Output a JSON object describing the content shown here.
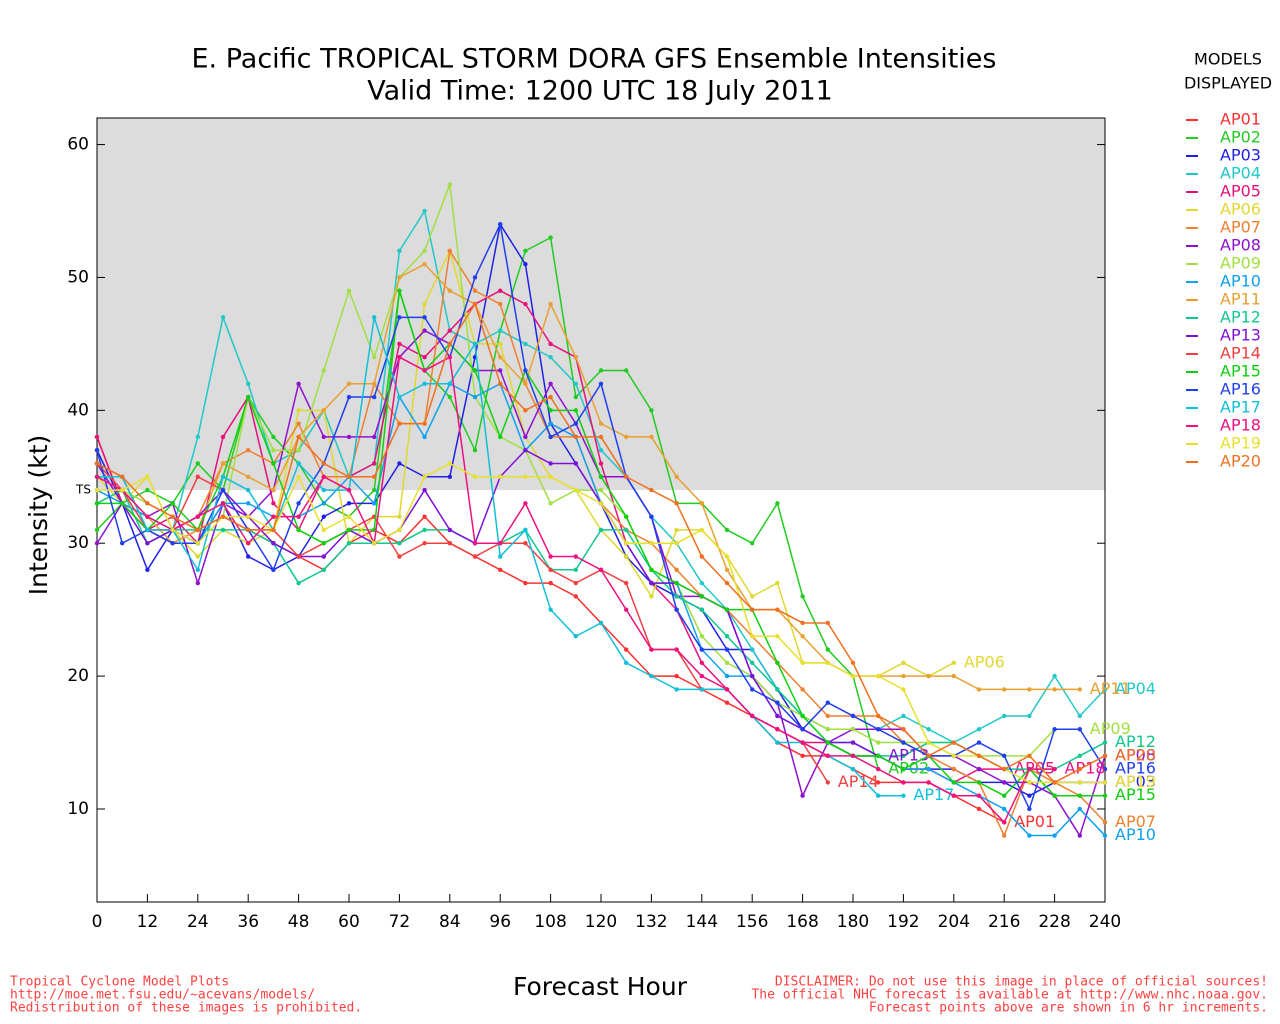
{
  "chart_data": {
    "type": "line",
    "title": "E. Pacific TROPICAL STORM DORA GFS Ensemble Intensities",
    "subtitle": "Valid Time: 1200 UTC 18 July 2011",
    "x_label": "Forecast Hour",
    "y_label": "Intensity (kt)",
    "legend_title": [
      "MODELS",
      "DISPLAYED"
    ],
    "footer_left": [
      "Tropical Cyclone Model Plots",
      "http://moe.met.fsu.edu/~acevans/models/",
      "Redistribution of these images is prohibited."
    ],
    "footer_right": [
      "DISCLAIMER: Do not use this image in place of official sources!",
      "The official NHC forecast is available at http://www.nhc.noaa.gov.",
      "Forecast points above are shown in 6 hr increments."
    ],
    "threshold": {
      "text": "TS",
      "value": 34
    },
    "xlim": [
      0,
      240
    ],
    "ylim": [
      3,
      62
    ],
    "xticks": [
      0,
      12,
      24,
      36,
      48,
      60,
      72,
      84,
      96,
      108,
      120,
      132,
      144,
      156,
      168,
      180,
      192,
      204,
      216,
      228,
      240
    ],
    "yticks": [
      10,
      20,
      30,
      40,
      50,
      60
    ],
    "legend": "right",
    "x": [
      0,
      6,
      12,
      18,
      24,
      30,
      36,
      42,
      48,
      54,
      60,
      66,
      72,
      78,
      84,
      90,
      96,
      102,
      108,
      114,
      120,
      126,
      132,
      138,
      144,
      150,
      156,
      162,
      168,
      174,
      180,
      186,
      192,
      198,
      204,
      210,
      216,
      222,
      228,
      234,
      240
    ],
    "series": [
      {
        "name": "AP01",
        "color": "#ff3030",
        "values": [
          38,
          33,
          31,
          30,
          31,
          32,
          31,
          30,
          29,
          28,
          30,
          31,
          30,
          32,
          30,
          29,
          28,
          27,
          27,
          26,
          24,
          22,
          20,
          20,
          19,
          18,
          17,
          15,
          14,
          14,
          13,
          12,
          12,
          12,
          11,
          10,
          9,
          null,
          null,
          null,
          null
        ]
      },
      {
        "name": "AP02",
        "color": "#20cc20",
        "values": [
          31,
          33,
          34,
          33,
          36,
          34,
          41,
          38,
          36,
          33,
          32,
          34,
          49,
          43,
          41,
          37,
          46,
          52,
          53,
          41,
          43,
          43,
          40,
          33,
          33,
          31,
          30,
          33,
          26,
          22,
          20,
          13,
          null,
          null,
          null,
          null,
          null,
          null,
          null,
          null,
          null
        ]
      },
      {
        "name": "AP03",
        "color": "#2020e8",
        "values": [
          37,
          33,
          28,
          31,
          30,
          33,
          29,
          28,
          29,
          32,
          33,
          33,
          36,
          35,
          35,
          44,
          54,
          51,
          39,
          36,
          33,
          29,
          27,
          26,
          25,
          22,
          22,
          19,
          16,
          15,
          14,
          14,
          13,
          13,
          13,
          12,
          12,
          11,
          12,
          12,
          12
        ]
      },
      {
        "name": "AP04",
        "color": "#20c8c8",
        "values": [
          35,
          35,
          31,
          31,
          38,
          47,
          42,
          36,
          37,
          40,
          35,
          36,
          52,
          55,
          46,
          45,
          46,
          45,
          44,
          42,
          37,
          35,
          32,
          30,
          27,
          25,
          22,
          19,
          17,
          16,
          16,
          16,
          17,
          16,
          15,
          16,
          17,
          17,
          20,
          17,
          19
        ]
      },
      {
        "name": "AP05",
        "color": "#e8107a",
        "values": [
          38,
          33,
          31,
          32,
          30,
          38,
          41,
          33,
          31,
          35,
          35,
          36,
          45,
          44,
          46,
          48,
          49,
          48,
          45,
          44,
          36,
          30,
          27,
          25,
          21,
          19,
          17,
          16,
          15,
          15,
          14,
          14,
          13,
          13,
          12,
          13,
          13,
          null,
          null,
          null,
          null
        ]
      },
      {
        "name": "AP06",
        "color": "#e0d830",
        "values": [
          35,
          33,
          35,
          31,
          29,
          31,
          30,
          31,
          40,
          40,
          30,
          32,
          32,
          48,
          52,
          45,
          45,
          38,
          35,
          34,
          31,
          29,
          26,
          31,
          31,
          29,
          26,
          27,
          21,
          21,
          20,
          20,
          21,
          20,
          21,
          null,
          null,
          null,
          null,
          null,
          null
        ]
      },
      {
        "name": "AP07",
        "color": "#f08030",
        "values": [
          36,
          35,
          31,
          31,
          32,
          36,
          37,
          36,
          39,
          35,
          35,
          42,
          39,
          39,
          52,
          49,
          48,
          42,
          38,
          38,
          33,
          31,
          30,
          28,
          26,
          25,
          23,
          21,
          19,
          17,
          17,
          17,
          15,
          14,
          13,
          12,
          8,
          13,
          12,
          11,
          9
        ]
      },
      {
        "name": "AP08",
        "color": "#9010d0",
        "values": [
          30,
          33,
          32,
          33,
          27,
          33,
          32,
          34,
          42,
          38,
          38,
          38,
          44,
          46,
          45,
          43,
          43,
          38,
          42,
          39,
          35,
          35,
          32,
          26,
          26,
          25,
          20,
          18,
          11,
          15,
          16,
          16,
          16,
          14,
          14,
          13,
          12,
          12,
          11,
          8,
          14
        ]
      },
      {
        "name": "AP09",
        "color": "#a0e040",
        "values": [
          33,
          34,
          33,
          32,
          31,
          32,
          41,
          37,
          37,
          43,
          49,
          44,
          50,
          52,
          57,
          41,
          38,
          37,
          33,
          34,
          34,
          32,
          28,
          27,
          23,
          21,
          20,
          18,
          17,
          16,
          16,
          15,
          15,
          15,
          15,
          14,
          14,
          14,
          16,
          16,
          null
        ]
      },
      {
        "name": "AP10",
        "color": "#10a0f0",
        "values": [
          34,
          33,
          32,
          31,
          30,
          33,
          33,
          32,
          32,
          33,
          35,
          33,
          41,
          38,
          42,
          41,
          42,
          37,
          39,
          38,
          33,
          30,
          27,
          27,
          22,
          20,
          20,
          17,
          16,
          15,
          15,
          14,
          13,
          13,
          12,
          11,
          10,
          8,
          8,
          10,
          8
        ]
      },
      {
        "name": "AP11",
        "color": "#e8a030",
        "values": [
          35,
          34,
          32,
          30,
          31,
          36,
          35,
          34,
          38,
          40,
          42,
          42,
          50,
          51,
          49,
          48,
          44,
          42,
          48,
          44,
          39,
          38,
          38,
          35,
          33,
          28,
          25,
          25,
          23,
          21,
          20,
          20,
          20,
          20,
          20,
          19,
          19,
          19,
          19,
          19,
          null
        ]
      },
      {
        "name": "AP12",
        "color": "#10c890",
        "values": [
          33,
          34,
          30,
          31,
          31,
          31,
          31,
          30,
          27,
          28,
          30,
          30,
          30,
          31,
          31,
          30,
          30,
          31,
          28,
          28,
          31,
          31,
          28,
          26,
          25,
          23,
          21,
          19,
          17,
          15,
          14,
          14,
          14,
          15,
          15,
          14,
          13,
          13,
          13,
          14,
          15
        ]
      },
      {
        "name": "AP13",
        "color": "#8010d8",
        "values": [
          36,
          33,
          30,
          31,
          32,
          34,
          32,
          30,
          29,
          29,
          31,
          30,
          31,
          34,
          31,
          30,
          35,
          37,
          36,
          36,
          33,
          30,
          27,
          27,
          26,
          25,
          20,
          17,
          16,
          15,
          15,
          14,
          null,
          null,
          null,
          null,
          null,
          null,
          null,
          null,
          null
        ]
      },
      {
        "name": "AP14",
        "color": "#f04040",
        "values": [
          36,
          34,
          31,
          31,
          35,
          34,
          31,
          31,
          29,
          30,
          31,
          32,
          29,
          30,
          30,
          29,
          30,
          30,
          28,
          27,
          28,
          27,
          22,
          22,
          19,
          19,
          17,
          16,
          15,
          12,
          null,
          null,
          null,
          null,
          null,
          null,
          null,
          null,
          null,
          null,
          null
        ]
      },
      {
        "name": "AP15",
        "color": "#10d010",
        "values": [
          33,
          33,
          31,
          33,
          31,
          35,
          41,
          36,
          31,
          30,
          31,
          31,
          49,
          43,
          45,
          43,
          38,
          43,
          40,
          40,
          35,
          32,
          28,
          27,
          26,
          25,
          25,
          21,
          17,
          15,
          14,
          14,
          13,
          14,
          12,
          12,
          11,
          13,
          11,
          11,
          11
        ]
      },
      {
        "name": "AP16",
        "color": "#2040f0",
        "values": [
          37,
          30,
          31,
          30,
          30,
          34,
          31,
          28,
          33,
          36,
          41,
          41,
          47,
          47,
          44,
          50,
          54,
          43,
          38,
          39,
          42,
          35,
          32,
          25,
          22,
          22,
          19,
          18,
          16,
          18,
          17,
          16,
          15,
          14,
          14,
          15,
          14,
          10,
          16,
          16,
          13
        ]
      },
      {
        "name": "AP17",
        "color": "#10c0d8",
        "values": [
          35,
          35,
          31,
          31,
          28,
          35,
          34,
          31,
          36,
          34,
          34,
          47,
          41,
          42,
          42,
          45,
          29,
          31,
          25,
          23,
          24,
          21,
          20,
          19,
          19,
          19,
          17,
          15,
          15,
          14,
          13,
          11,
          11,
          null,
          null,
          null,
          null,
          null,
          null,
          null,
          null
        ]
      },
      {
        "name": "AP18",
        "color": "#f01080",
        "values": [
          35,
          34,
          32,
          31,
          32,
          33,
          30,
          32,
          32,
          35,
          34,
          30,
          44,
          43,
          44,
          30,
          30,
          33,
          29,
          29,
          28,
          25,
          22,
          22,
          20,
          19,
          17,
          16,
          15,
          14,
          14,
          13,
          12,
          12,
          11,
          11,
          9,
          13,
          13,
          null,
          null
        ]
      },
      {
        "name": "AP19",
        "color": "#e8e030",
        "values": [
          34,
          34,
          35,
          31,
          30,
          32,
          32,
          31,
          35,
          31,
          32,
          30,
          31,
          35,
          36,
          35,
          35,
          35,
          35,
          34,
          33,
          30,
          30,
          30,
          31,
          29,
          23,
          23,
          21,
          21,
          20,
          20,
          19,
          15,
          14,
          14,
          13,
          12,
          12,
          12,
          12
        ]
      },
      {
        "name": "AP20",
        "color": "#f07020",
        "values": [
          36,
          35,
          33,
          32,
          31,
          32,
          31,
          31,
          38,
          36,
          35,
          35,
          39,
          39,
          45,
          48,
          42,
          40,
          41,
          38,
          38,
          35,
          34,
          33,
          29,
          27,
          25,
          25,
          24,
          24,
          21,
          17,
          16,
          14,
          15,
          14,
          13,
          14,
          12,
          13,
          14
        ]
      }
    ]
  }
}
